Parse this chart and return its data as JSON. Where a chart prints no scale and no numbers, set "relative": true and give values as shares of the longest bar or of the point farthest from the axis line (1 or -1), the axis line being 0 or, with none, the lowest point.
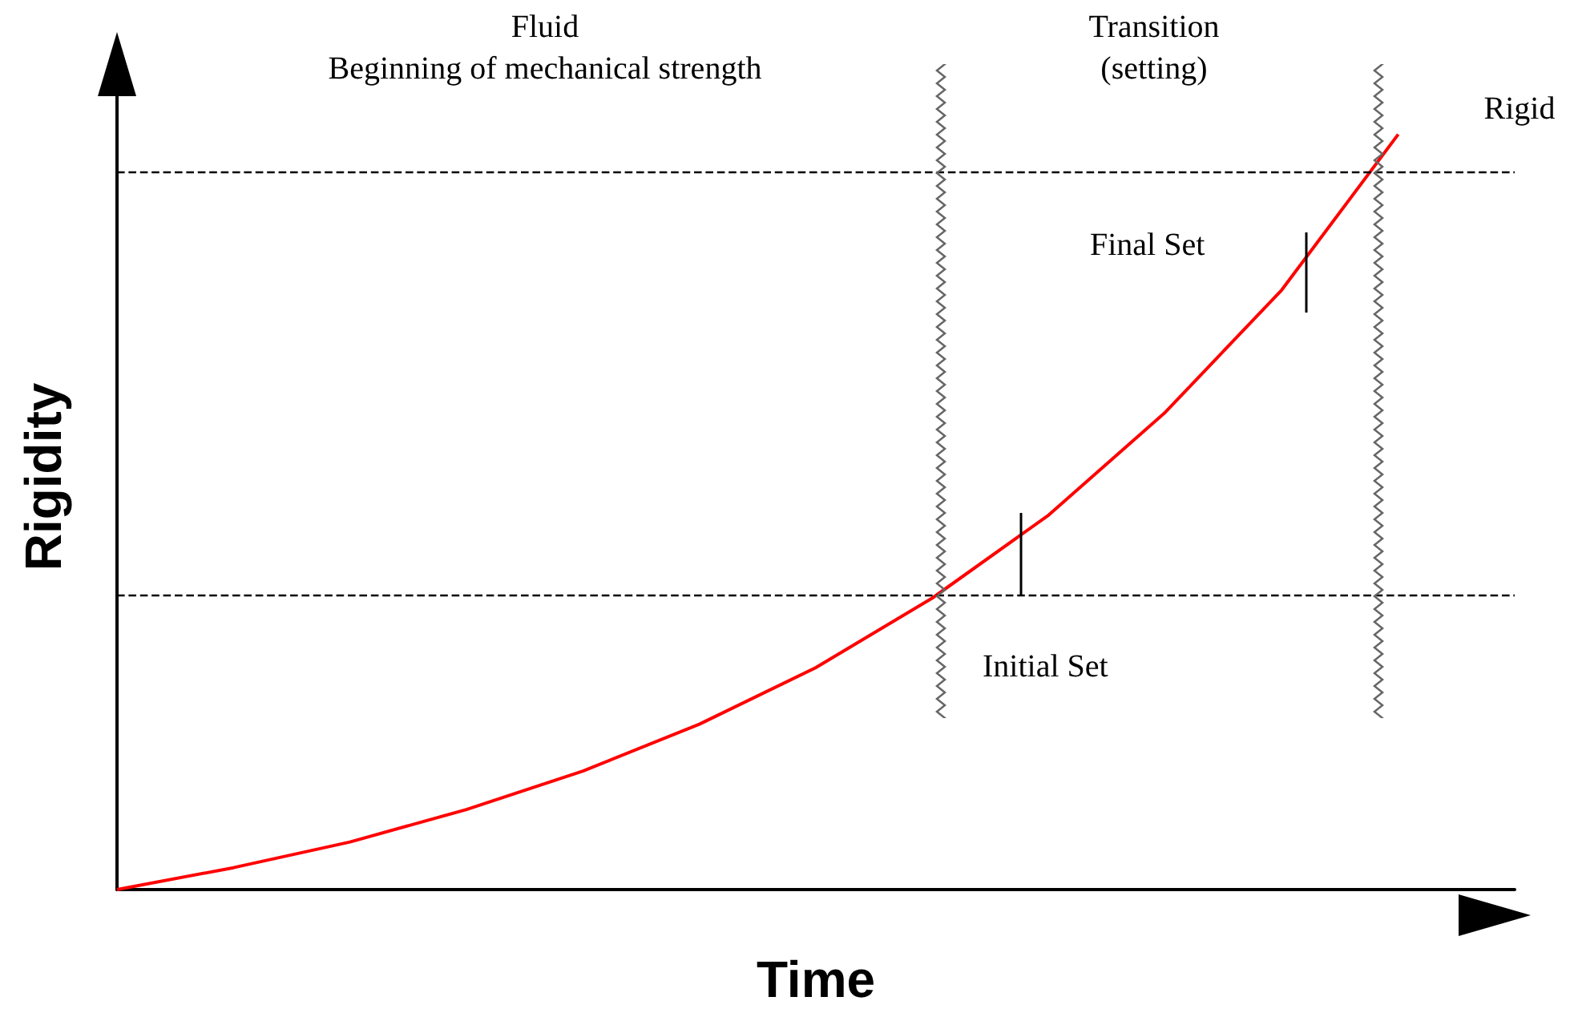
{
  "chart_data": {
    "type": "line",
    "relative": true,
    "xlabel": "Time",
    "ylabel": "Rigidity",
    "categories": [
      null,
      null,
      null,
      null,
      null,
      null,
      null,
      null,
      null,
      null,
      null,
      null,
      null
    ],
    "series": [
      {
        "color": "#ff0000",
        "values": [
          0,
          0.029,
          0.063,
          0.106,
          0.157,
          0.219,
          0.294,
          0.386,
          0.496,
          0.632,
          0.794,
          1,
          null
        ]
      }
    ],
    "tick_labels": false,
    "marker": "none",
    "line_style": "solid",
    "ref_lines": [
      {
        "axis": "y",
        "value": 0.392,
        "color": "#000000",
        "line_style": "dashed"
      },
      {
        "axis": "y",
        "value": 0.953,
        "color": "#000000",
        "line_style": "dashed"
      }
    ],
    "annotations": [
      "Fluid\nBeginning of mechanical strength",
      "Transition\n(setting)",
      "Rigid",
      "Final Set",
      "Initial Set"
    ]
  }
}
